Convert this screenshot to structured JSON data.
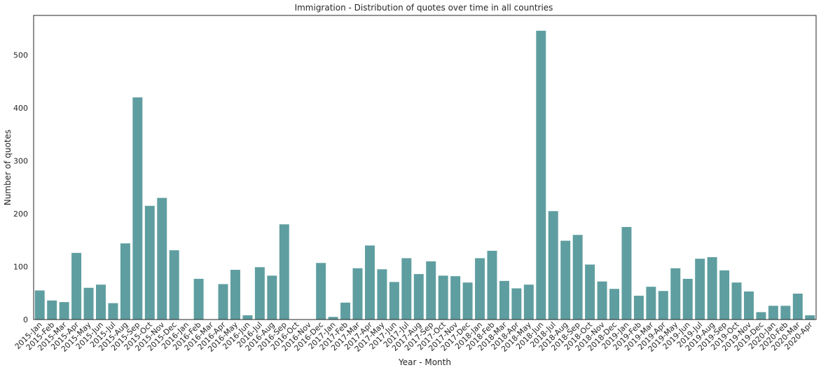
{
  "chart_data": {
    "type": "bar",
    "title": "Immigration - Distribution of quotes over time in all countries",
    "xlabel": "Year - Month",
    "ylabel": "Number of quotes",
    "ylim": [
      0,
      575
    ],
    "yticks": [
      0,
      100,
      200,
      300,
      400,
      500
    ],
    "grid": false,
    "bar_color": "#5f9ea0",
    "categories": [
      "2015-Jan",
      "2015-Feb",
      "2015-Mar",
      "2015-Apr",
      "2015-May",
      "2015-Jun",
      "2015-Jul",
      "2015-Aug",
      "2015-Sep",
      "2015-Oct",
      "2015-Nov",
      "2015-Dec",
      "2016-Jan",
      "2016-Feb",
      "2016-Mar",
      "2016-Apr",
      "2016-May",
      "2016-Jun",
      "2016-Jul",
      "2016-Aug",
      "2016-Sep",
      "2016-Oct",
      "2016-Nov",
      "2016-Dec",
      "2017-Jan",
      "2017-Feb",
      "2017-Mar",
      "2017-Apr",
      "2017-May",
      "2017-Jun",
      "2017-Jul",
      "2017-Aug",
      "2017-Sep",
      "2017-Oct",
      "2017-Nov",
      "2017-Dec",
      "2018-Jan",
      "2018-Feb",
      "2018-Mar",
      "2018-Apr",
      "2018-May",
      "2018-Jun",
      "2018-Jul",
      "2018-Aug",
      "2018-Sep",
      "2018-Oct",
      "2018-Nov",
      "2018-Dec",
      "2019-Jan",
      "2019-Feb",
      "2019-Mar",
      "2019-Apr",
      "2019-May",
      "2019-Jun",
      "2019-Jul",
      "2019-Aug",
      "2019-Sep",
      "2019-Oct",
      "2019-Nov",
      "2019-Dec",
      "2020-Jan",
      "2020-Feb",
      "2020-Mar",
      "2020-Apr"
    ],
    "bars": [
      {
        "cat": 0,
        "value": 55
      },
      {
        "cat": 1,
        "value": 36
      },
      {
        "cat": 2,
        "value": 33
      },
      {
        "cat": 3,
        "value": 126
      },
      {
        "cat": 4,
        "value": 60
      },
      {
        "cat": 5,
        "value": 66
      },
      {
        "cat": 6,
        "value": 31
      },
      {
        "cat": 7,
        "value": 144
      },
      {
        "cat": 8,
        "value": 420
      },
      {
        "cat": 9,
        "value": 215
      },
      {
        "cat": 10,
        "value": 230
      },
      {
        "cat": 11,
        "value": 131
      },
      {
        "cat": 13,
        "value": 77
      },
      {
        "cat": 15,
        "value": 67
      },
      {
        "cat": 16,
        "value": 94
      },
      {
        "cat": 17,
        "value": 8
      },
      {
        "cat": 18,
        "value": 99
      },
      {
        "cat": 19,
        "value": 83
      },
      {
        "cat": 20,
        "value": 180
      },
      {
        "cat": 23,
        "value": 107
      },
      {
        "cat": 24,
        "value": 5
      },
      {
        "cat": 25,
        "value": 32
      },
      {
        "cat": 26,
        "value": 97
      },
      {
        "cat": 27,
        "value": 140
      },
      {
        "cat": 28,
        "value": 95
      },
      {
        "cat": 29,
        "value": 71
      },
      {
        "cat": 30,
        "value": 116
      },
      {
        "cat": 31,
        "value": 86
      },
      {
        "cat": 32,
        "value": 110
      },
      {
        "cat": 33,
        "value": 83
      },
      {
        "cat": 34,
        "value": 82
      },
      {
        "cat": 35,
        "value": 70
      },
      {
        "cat": 36,
        "value": 116
      },
      {
        "cat": 37,
        "value": 130
      },
      {
        "cat": 38,
        "value": 73
      },
      {
        "cat": 39,
        "value": 59
      },
      {
        "cat": 40,
        "value": 66
      },
      {
        "cat": 41,
        "value": 546
      },
      {
        "cat": 42,
        "value": 205
      },
      {
        "cat": 43,
        "value": 149
      },
      {
        "cat": 44,
        "value": 160
      },
      {
        "cat": 45,
        "value": 104
      },
      {
        "cat": 46,
        "value": 72
      },
      {
        "cat": 47,
        "value": 58
      },
      {
        "cat": 48,
        "value": 175
      },
      {
        "cat": 49,
        "value": 45
      },
      {
        "cat": 50,
        "value": 62
      },
      {
        "cat": 51,
        "value": 54
      },
      {
        "cat": 52,
        "value": 97
      },
      {
        "cat": 53,
        "value": 77
      },
      {
        "cat": 54,
        "value": 115
      },
      {
        "cat": 55,
        "value": 118
      },
      {
        "cat": 56,
        "value": 93
      },
      {
        "cat": 57,
        "value": 70
      },
      {
        "cat": 58,
        "value": 53
      },
      {
        "cat": 59,
        "value": 14
      },
      {
        "cat": 60,
        "value": 26
      },
      {
        "cat": 61,
        "value": 26
      },
      {
        "cat": 62,
        "value": 49
      },
      {
        "cat": 63,
        "value": 8
      }
    ],
    "x_tick_indices": [
      0,
      1,
      2,
      3,
      4,
      5,
      6,
      7,
      8,
      9,
      10,
      11,
      12,
      13,
      14,
      15,
      16,
      17,
      18,
      19,
      20,
      21,
      22,
      23,
      24,
      25,
      26,
      27,
      28,
      29,
      30,
      31,
      32,
      33,
      34,
      35,
      36,
      37,
      38,
      39,
      40,
      41,
      42,
      43,
      44,
      45,
      46,
      47,
      48,
      49,
      50,
      51,
      52,
      53,
      54,
      55,
      56,
      57,
      58,
      59,
      60,
      61,
      62,
      63
    ]
  }
}
